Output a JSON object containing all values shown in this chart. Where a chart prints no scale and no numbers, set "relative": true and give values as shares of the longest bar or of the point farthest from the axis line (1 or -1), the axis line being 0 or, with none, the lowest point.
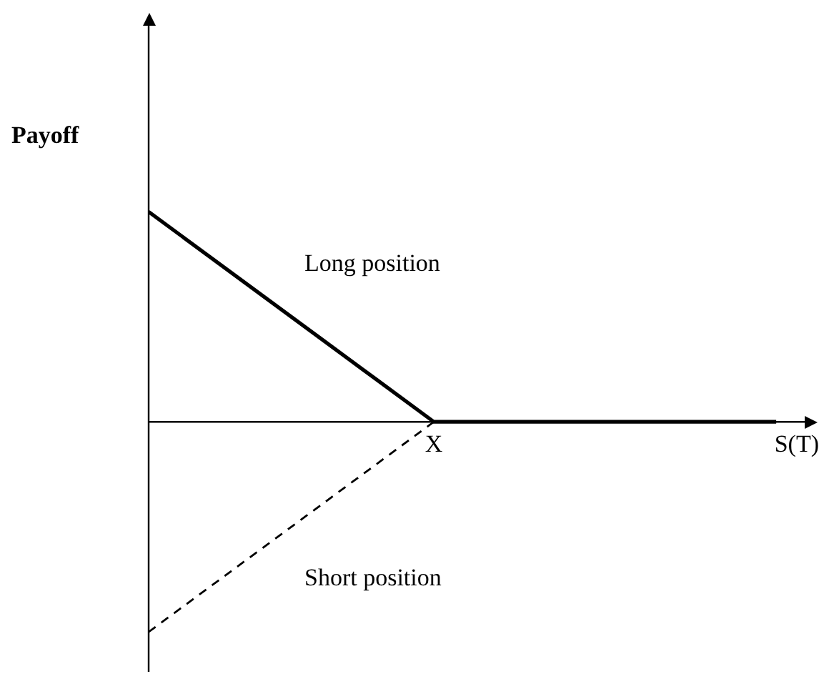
{
  "chart_data": {
    "type": "line",
    "relative": true,
    "ylabel": "Payoff",
    "xlabel": "S(T)",
    "legend": false,
    "marker": "none",
    "categories": [
      null,
      null,
      null,
      null,
      null,
      null,
      null,
      null,
      null,
      null,
      null,
      null
    ],
    "annotations": [
      "X"
    ],
    "series": [
      {
        "name": "Long position",
        "color": "#000000",
        "values": [
          1,
          0.8,
          0.6,
          0.4,
          0.2,
          0,
          0,
          0,
          0,
          0,
          0,
          0
        ],
        "line_style": "solid"
      },
      {
        "name": "Short position",
        "color": "#000000",
        "values": [
          -1,
          -0.8,
          -0.6,
          -0.4,
          -0.2,
          0,
          0,
          0,
          0,
          0,
          0,
          0
        ],
        "line_style": "dashed"
      }
    ]
  }
}
